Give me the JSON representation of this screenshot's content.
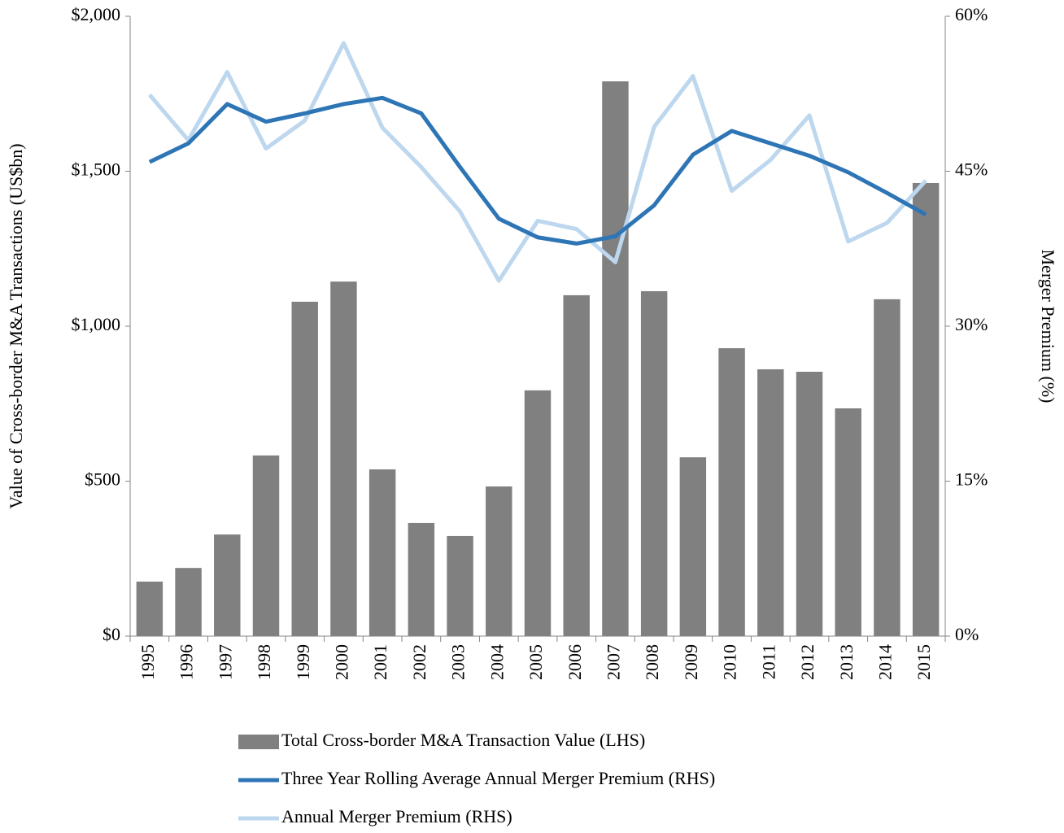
{
  "chart_data": {
    "type": "bar",
    "categories": [
      "1995",
      "1996",
      "1997",
      "1998",
      "1999",
      "2000",
      "2001",
      "2002",
      "2003",
      "2004",
      "2005",
      "2006",
      "2007",
      "2008",
      "2009",
      "2010",
      "2011",
      "2012",
      "2013",
      "2014",
      "2015"
    ],
    "series": [
      {
        "name": "Total Cross-border M&A Transaction Value (LHS)",
        "type": "bar",
        "color": "#808080",
        "values": [
          176,
          220,
          328,
          583,
          1079,
          1144,
          538,
          365,
          323,
          483,
          793,
          1100,
          1790,
          1113,
          577,
          929,
          861,
          853,
          735,
          1087,
          1462
        ]
      },
      {
        "name": "Three Year Rolling Average Annual Merger Premium (RHS)",
        "type": "line",
        "axis": "y2",
        "color": "#2e75b6",
        "values": [
          45.9,
          47.7,
          51.5,
          49.8,
          50.6,
          51.5,
          52.1,
          50.6,
          45.4,
          40.4,
          38.6,
          38.0,
          38.7,
          41.7,
          46.6,
          48.9,
          47.7,
          46.5,
          44.9,
          42.9,
          40.8
        ]
      },
      {
        "name": "Annual Merger Premium (RHS)",
        "type": "line",
        "axis": "y2",
        "color": "#bdd7ee",
        "values": [
          52.4,
          48.0,
          54.6,
          47.2,
          49.9,
          57.4,
          49.2,
          45.4,
          41.1,
          34.4,
          40.2,
          39.4,
          36.2,
          49.3,
          54.2,
          43.1,
          46.1,
          50.4,
          38.2,
          40.0,
          44.1
        ]
      }
    ],
    "ylabel": "Value of Cross-border M&A Transactions (US$bn)",
    "y2label": "Merger Premium (%)",
    "ylim": [
      0,
      2000
    ],
    "yticks": [
      {
        "value": 0,
        "label": "$0"
      },
      {
        "value": 500,
        "label": "$500"
      },
      {
        "value": 1000,
        "label": "$1,000"
      },
      {
        "value": 1500,
        "label": "$1,500"
      },
      {
        "value": 2000,
        "label": "$2,000"
      }
    ],
    "y2lim": [
      0,
      60
    ],
    "y2ticks": [
      {
        "value": 0,
        "label": "0%"
      },
      {
        "value": 15,
        "label": "15%"
      },
      {
        "value": 30,
        "label": "30%"
      },
      {
        "value": 45,
        "label": "45%"
      },
      {
        "value": 60,
        "label": "60%"
      }
    ],
    "grid": false,
    "legend": "bottom"
  }
}
